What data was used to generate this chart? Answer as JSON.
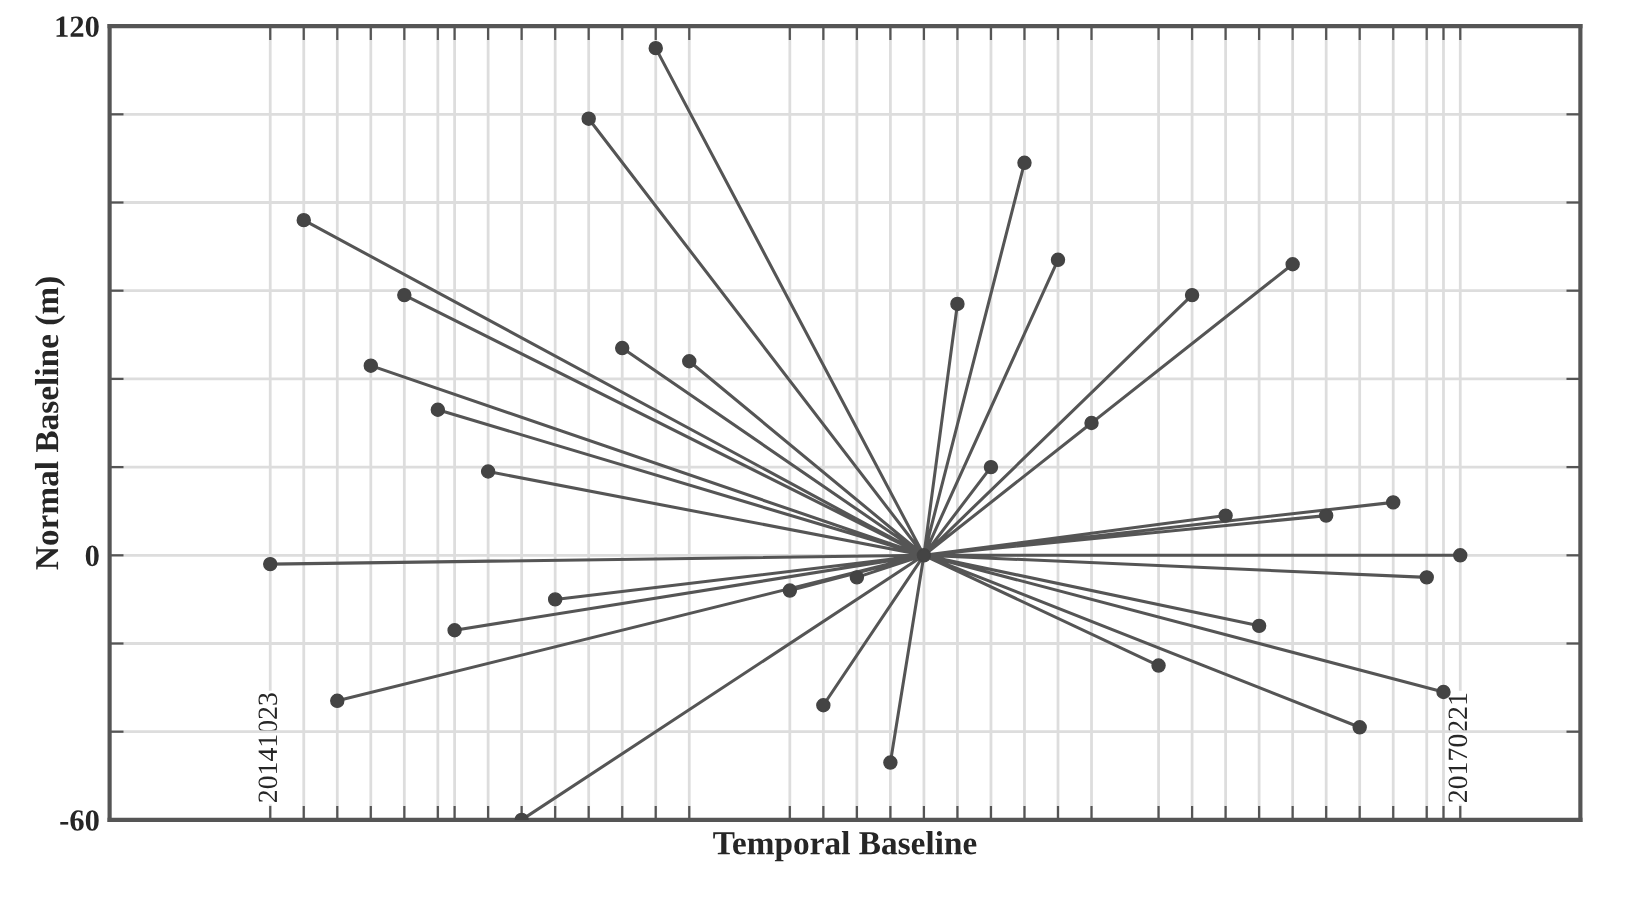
{
  "chart_data": {
    "type": "scatter",
    "xlabel": "Temporal Baseline",
    "ylabel": "Normal Baseline (m)",
    "xlim": [
      "2014-06-30",
      "2017-05-18"
    ],
    "ylim": [
      -60,
      120
    ],
    "yticks": [
      120,
      {
        "value": 100,
        "label": null
      },
      {
        "value": 80,
        "label": null
      },
      {
        "value": 60,
        "label": null
      },
      {
        "value": 40,
        "label": null
      },
      {
        "value": 20,
        "label": null
      },
      0,
      {
        "value": -20,
        "label": null
      },
      {
        "value": -40,
        "label": null
      },
      -60
    ],
    "xticks": [
      {
        "value": "2014-10-23",
        "label": "20141023"
      },
      {
        "value": "2014-11-16",
        "label": null
      },
      {
        "value": "2014-12-10",
        "label": null
      },
      {
        "value": "2015-01-03",
        "label": null
      },
      {
        "value": "2015-01-27",
        "label": null
      },
      {
        "value": "2015-02-20",
        "label": null
      },
      {
        "value": "2015-03-04",
        "label": null
      },
      {
        "value": "2015-03-28",
        "label": null
      },
      {
        "value": "2015-04-21",
        "label": null
      },
      {
        "value": "2015-05-15",
        "label": null
      },
      {
        "value": "2015-06-08",
        "label": null
      },
      {
        "value": "2015-07-02",
        "label": null
      },
      {
        "value": "2015-07-26",
        "label": null
      },
      {
        "value": "2015-08-19",
        "label": null
      },
      {
        "value": "2015-10-30",
        "label": null
      },
      {
        "value": "2015-11-23",
        "label": null
      },
      {
        "value": "2015-12-17",
        "label": null
      },
      {
        "value": "2016-01-10",
        "label": null
      },
      {
        "value": "2016-02-03",
        "label": null
      },
      {
        "value": "2016-02-27",
        "label": null
      },
      {
        "value": "2016-03-22",
        "label": null
      },
      {
        "value": "2016-04-15",
        "label": null
      },
      {
        "value": "2016-05-09",
        "label": null
      },
      {
        "value": "2016-06-02",
        "label": null
      },
      {
        "value": "2016-07-20",
        "label": null
      },
      {
        "value": "2016-08-13",
        "label": null
      },
      {
        "value": "2016-09-06",
        "label": null
      },
      {
        "value": "2016-09-30",
        "label": null
      },
      {
        "value": "2016-10-24",
        "label": null
      },
      {
        "value": "2016-11-17",
        "label": null
      },
      {
        "value": "2016-12-11",
        "label": null
      },
      {
        "value": "2017-01-04",
        "label": null
      },
      {
        "value": "2017-01-28",
        "label": null
      },
      {
        "value": "2017-02-09",
        "label": null
      },
      {
        "value": "2017-02-21",
        "label": "20170221"
      }
    ],
    "grid": true,
    "series": [
      {
        "type": "line",
        "color": "#555555",
        "x": [
          "2016-02-03",
          "2014-10-23",
          null,
          "2016-02-03",
          "2014-11-16",
          null,
          "2016-02-03",
          "2014-12-10",
          null,
          "2016-02-03",
          "2015-01-03",
          null,
          "2016-02-03",
          "2015-01-27",
          null,
          "2016-02-03",
          "2015-02-20",
          null,
          "2016-02-03",
          "2015-03-04",
          null,
          "2016-02-03",
          "2015-03-28",
          null,
          "2016-02-03",
          "2015-04-21",
          null,
          "2016-02-03",
          "2015-05-15",
          null,
          "2016-02-03",
          "2015-06-08",
          null,
          "2016-02-03",
          "2015-07-02",
          null,
          "2016-02-03",
          "2015-07-26",
          null,
          "2016-02-03",
          "2015-08-19",
          null,
          "2016-02-03",
          "2015-10-30",
          null,
          "2016-02-03",
          "2015-11-23",
          null,
          "2016-02-03",
          "2015-12-17",
          null,
          "2016-02-03",
          "2016-01-10",
          null,
          "2016-02-03",
          "2016-02-27",
          null,
          "2016-02-03",
          "2016-03-22",
          null,
          "2016-02-03",
          "2016-04-15",
          null,
          "2016-02-03",
          "2016-05-09",
          null,
          "2016-02-03",
          "2016-06-02",
          null,
          "2016-02-03",
          "2016-07-20",
          null,
          "2016-02-03",
          "2016-08-13",
          null,
          "2016-02-03",
          "2016-09-06",
          null,
          "2016-02-03",
          "2016-09-30",
          null,
          "2016-02-03",
          "2016-10-24",
          null,
          "2016-02-03",
          "2016-11-17",
          null,
          "2016-02-03",
          "2016-12-11",
          null,
          "2016-02-03",
          "2017-01-04",
          null,
          "2016-02-03",
          "2017-01-28",
          null,
          "2016-02-03",
          "2017-02-09",
          null,
          "2016-02-03",
          "2017-02-21"
        ],
        "values": [
          0,
          -2,
          null,
          0,
          76,
          null,
          0,
          -33,
          null,
          0,
          43,
          null,
          0,
          59,
          null,
          0,
          33,
          null,
          0,
          -17,
          null,
          0,
          19,
          null,
          0,
          -60,
          null,
          0,
          -10,
          null,
          0,
          99,
          null,
          0,
          47,
          null,
          0,
          115,
          null,
          0,
          44,
          null,
          0,
          -8,
          null,
          0,
          -34,
          null,
          0,
          -5,
          null,
          0,
          -47,
          null,
          0,
          57,
          null,
          0,
          20,
          null,
          0,
          89,
          null,
          0,
          67,
          null,
          0,
          30,
          null,
          0,
          -25,
          null,
          0,
          59,
          null,
          0,
          9,
          null,
          0,
          -16,
          null,
          0,
          66,
          null,
          0,
          9,
          null,
          0,
          -39,
          null,
          0,
          12,
          null,
          0,
          -5,
          null,
          0,
          -31,
          null,
          0,
          0
        ]
      },
      {
        "color": "#444444",
        "marker": "circle",
        "x": [
          "2014-10-23",
          "2014-11-16",
          "2014-12-10",
          "2015-01-03",
          "2015-01-27",
          "2015-02-20",
          "2015-03-04",
          "2015-03-28",
          "2015-04-21",
          "2015-05-15",
          "2015-06-08",
          "2015-07-02",
          "2015-07-26",
          "2015-08-19",
          "2015-10-30",
          "2015-11-23",
          "2015-12-17",
          "2016-01-10",
          "2016-02-03",
          "2016-02-27",
          "2016-03-22",
          "2016-04-15",
          "2016-05-09",
          "2016-06-02",
          "2016-07-20",
          "2016-08-13",
          "2016-09-06",
          "2016-09-30",
          "2016-10-24",
          "2016-11-17",
          "2016-12-11",
          "2017-01-04",
          "2017-01-28",
          "2017-02-09",
          "2017-02-21"
        ],
        "values": [
          -2,
          76,
          -33,
          43,
          59,
          33,
          -17,
          19,
          -60,
          -10,
          99,
          47,
          115,
          44,
          -8,
          -34,
          -5,
          -47,
          0,
          57,
          20,
          89,
          67,
          30,
          -25,
          59,
          9,
          -16,
          66,
          9,
          -39,
          12,
          -5,
          -31,
          0
        ]
      }
    ]
  }
}
